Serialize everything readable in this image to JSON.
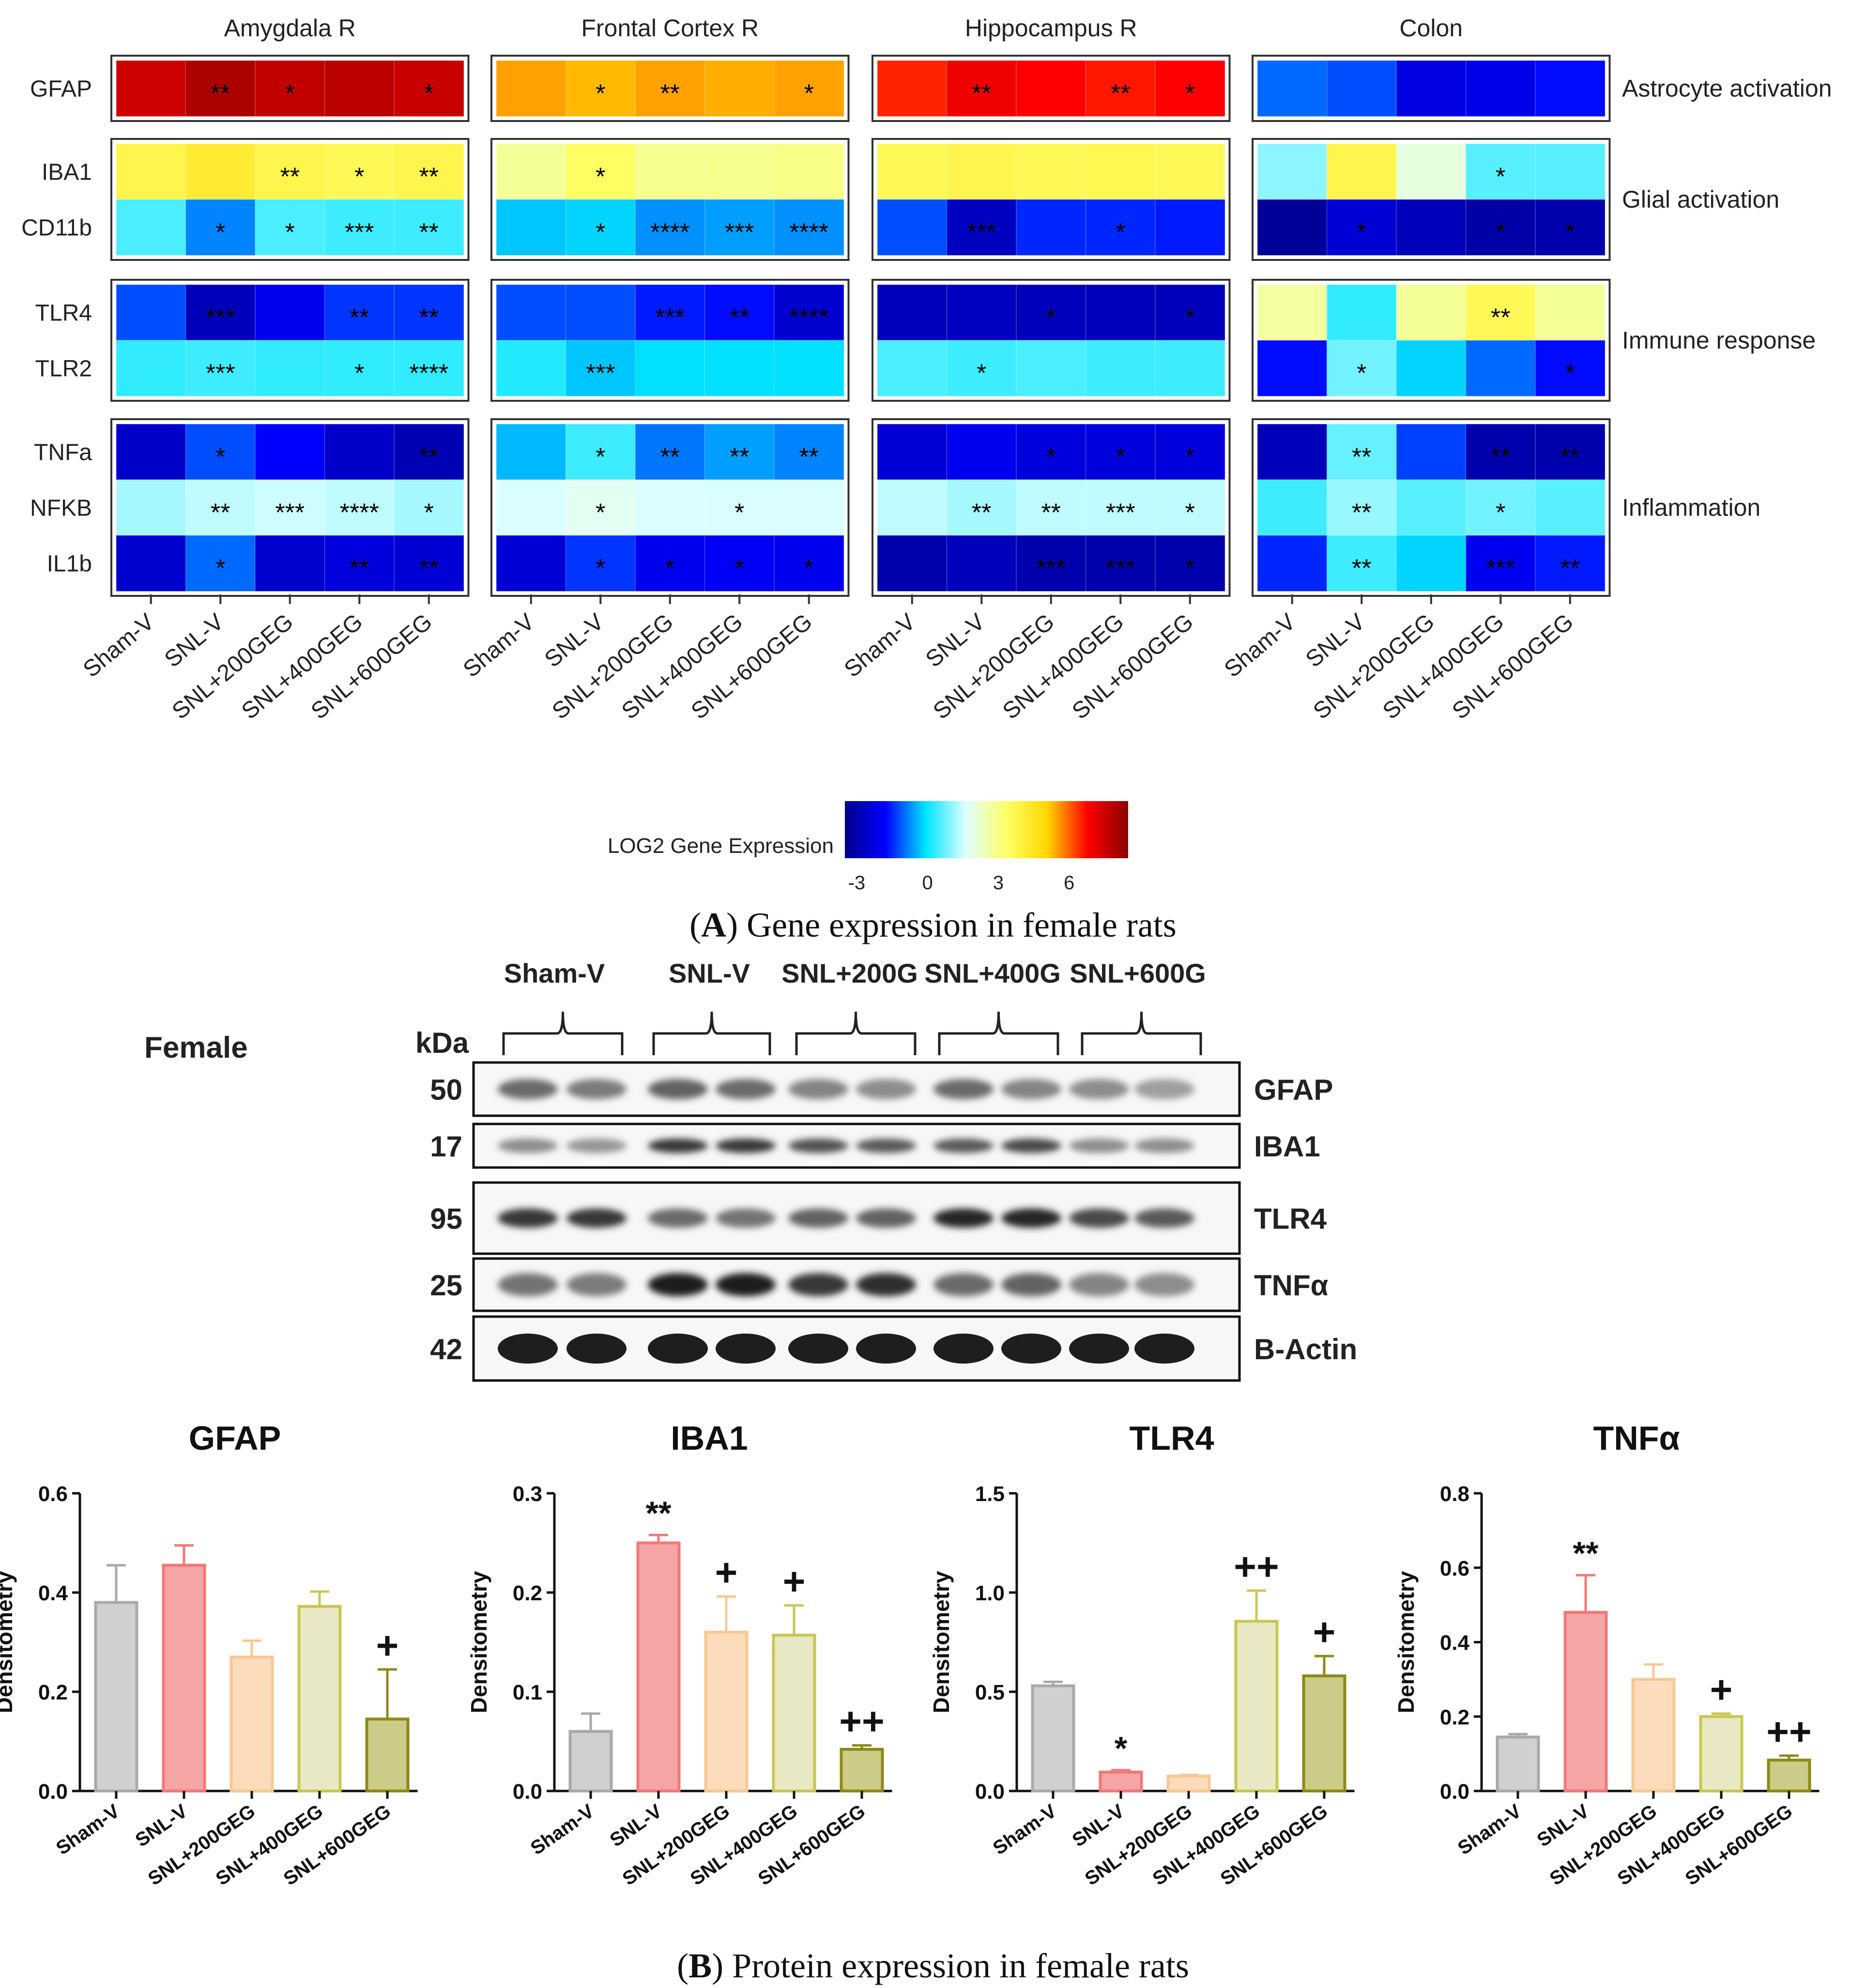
{
  "panel_a": {
    "caption_letter": "A",
    "caption_rest": " Gene expression in female rats",
    "groups": [
      "Sham-V",
      "SNL-V",
      "SNL+200GEG",
      "SNL+400GEG",
      "SNL+600GEG"
    ],
    "regions": [
      "Amygdala R",
      "Frontal Cortex R",
      "Hippocampus R",
      "Colon"
    ],
    "blocks": [
      {
        "category": "Astrocyte activation",
        "genes": [
          "GFAP"
        ]
      },
      {
        "category": "Glial activation",
        "genes": [
          "IBA1",
          "CD11b"
        ]
      },
      {
        "category": "Immune response",
        "genes": [
          "TLR4",
          "TLR2"
        ]
      },
      {
        "category": "Inflammation",
        "genes": [
          "TNFa",
          "NFKB",
          "IL1b"
        ]
      }
    ],
    "colorbar": {
      "label": "LOG2 Gene Expression",
      "ticks": [
        "-3",
        "0",
        "3",
        "6"
      ],
      "min": -3.5,
      "max": 8.5,
      "stops": [
        "#00008b",
        "#0000ff",
        "#00e5ff",
        "#e0ffff",
        "#ffff66",
        "#ffd700",
        "#ff0000",
        "#8b0000"
      ]
    }
  },
  "chart_data": [
    {
      "type": "heatmap",
      "title": "Gene expression in female rats",
      "colorbar_label": "LOG2 Gene Expression",
      "rows": [
        "GFAP",
        "IBA1",
        "CD11b",
        "TLR4",
        "TLR2",
        "TNFa",
        "NFKB",
        "IL1b"
      ],
      "columns": [
        "Sham-V",
        "SNL-V",
        "SNL+200GEG",
        "SNL+400GEG",
        "SNL+600GEG"
      ],
      "panels": [
        {
          "region": "Amygdala R",
          "values": [
            [
              7.5,
              8.0,
              7.7,
              7.8,
              7.6
            ],
            [
              3.8,
              4.2,
              3.8,
              3.6,
              3.8
            ],
            [
              0.5,
              -0.8,
              0.5,
              0.4,
              0.4
            ],
            [
              -1.2,
              -2.8,
              -2.0,
              -1.4,
              -1.4
            ],
            [
              0.3,
              0.4,
              0.3,
              0.3,
              0.3
            ],
            [
              -2.6,
              -1.2,
              -1.8,
              -2.6,
              -2.9
            ],
            [
              1.2,
              1.4,
              1.5,
              1.4,
              1.2
            ],
            [
              -2.5,
              -1.0,
              -2.5,
              -2.3,
              -2.4
            ]
          ],
          "stars": [
            [
              "",
              "**",
              "*",
              "",
              "*"
            ],
            [
              "",
              "",
              "**",
              "*",
              "**"
            ],
            [
              "",
              "*",
              "*",
              "***",
              "**"
            ],
            [
              "",
              "***",
              "",
              "**",
              "**"
            ],
            [
              "",
              "***",
              "",
              "*",
              "****"
            ],
            [
              "",
              "*",
              "",
              "",
              "**"
            ],
            [
              "",
              "**",
              "***",
              "****",
              "*"
            ],
            [
              "",
              "*",
              "",
              "**",
              "**"
            ]
          ]
        },
        {
          "region": "Frontal Cortex R",
          "values": [
            [
              5.5,
              5.3,
              5.5,
              5.4,
              5.5
            ],
            [
              2.8,
              3.4,
              2.9,
              2.9,
              3.0
            ],
            [
              -0.3,
              -0.2,
              -0.7,
              -0.6,
              -0.7
            ],
            [
              -1.2,
              -1.2,
              -1.6,
              -1.7,
              -2.5
            ],
            [
              0.2,
              -0.3,
              -0.1,
              -0.1,
              -0.1
            ],
            [
              -0.4,
              0.4,
              -0.9,
              -0.6,
              -0.8
            ],
            [
              1.6,
              1.8,
              1.6,
              1.6,
              1.6
            ],
            [
              -2.4,
              -1.4,
              -2.0,
              -1.9,
              -2.0
            ]
          ],
          "stars": [
            [
              "",
              "*",
              "**",
              "",
              "*"
            ],
            [
              "",
              "*",
              "",
              "",
              ""
            ],
            [
              "",
              "*",
              "****",
              "***",
              "****"
            ],
            [
              "",
              "",
              "***",
              "**",
              "****"
            ],
            [
              "",
              "***",
              "",
              "",
              ""
            ],
            [
              "",
              "*",
              "**",
              "**",
              "**"
            ],
            [
              "",
              "*",
              "",
              "*",
              ""
            ],
            [
              "",
              "*",
              "*",
              "*",
              "*"
            ]
          ]
        },
        {
          "region": "Hippocampus R",
          "values": [
            [
              6.5,
              7.0,
              6.8,
              6.6,
              6.8
            ],
            [
              3.6,
              3.8,
              3.6,
              3.7,
              3.6
            ],
            [
              -1.2,
              -2.7,
              -1.5,
              -1.5,
              -1.6
            ],
            [
              -2.8,
              -2.7,
              -2.8,
              -2.8,
              -2.8
            ],
            [
              0.5,
              0.4,
              0.5,
              0.4,
              0.4
            ],
            [
              -2.4,
              -2.0,
              -2.3,
              -2.3,
              -2.3
            ],
            [
              1.4,
              1.2,
              1.4,
              1.4,
              1.4
            ],
            [
              -3.0,
              -2.8,
              -3.0,
              -3.0,
              -3.0
            ]
          ],
          "stars": [
            [
              "",
              "**",
              "",
              "**",
              "*"
            ],
            [
              "",
              "",
              "",
              "",
              ""
            ],
            [
              "",
              "***",
              "",
              "*",
              ""
            ],
            [
              "",
              "",
              "*",
              "",
              "*"
            ],
            [
              "",
              "*",
              "",
              "",
              ""
            ],
            [
              "",
              "",
              "*",
              "*",
              "*"
            ],
            [
              "",
              "**",
              "**",
              "***",
              "*"
            ],
            [
              "",
              "",
              "***",
              "***",
              "*"
            ]
          ]
        },
        {
          "region": "Colon",
          "values": [
            [
              -1.0,
              -1.2,
              -2.2,
              -2.1,
              -1.7
            ],
            [
              1.0,
              3.8,
              2.0,
              0.6,
              0.6
            ],
            [
              -3.3,
              -2.4,
              -2.8,
              -3.1,
              -3.0
            ],
            [
              2.7,
              0.3,
              2.8,
              3.6,
              2.8
            ],
            [
              -1.7,
              0.8,
              -0.2,
              -1.0,
              -1.7
            ],
            [
              -2.8,
              0.7,
              -1.3,
              -3.0,
              -3.0
            ],
            [
              0.4,
              1.1,
              0.6,
              0.8,
              0.6
            ],
            [
              -1.5,
              0.4,
              -0.2,
              -2.0,
              -1.6
            ]
          ],
          "stars": [
            [
              "",
              "",
              "",
              "",
              ""
            ],
            [
              "",
              "",
              "",
              "*",
              ""
            ],
            [
              "",
              "*",
              "",
              "*",
              "*"
            ],
            [
              "",
              "",
              "",
              "**",
              ""
            ],
            [
              "",
              "*",
              "",
              "",
              "*"
            ],
            [
              "",
              "**",
              "",
              "**",
              "**"
            ],
            [
              "",
              "**",
              "",
              "*",
              ""
            ],
            [
              "",
              "**",
              "",
              "***",
              "**"
            ]
          ]
        }
      ]
    },
    {
      "type": "bar",
      "title": "GFAP",
      "ylabel": "Densitometry",
      "ylim": [
        0,
        0.6
      ],
      "yticks": [
        "0.0",
        "0.2",
        "0.4",
        "0.6"
      ],
      "categories": [
        "Sham-V",
        "SNL-V",
        "SNL+200GEG",
        "SNL+400GEG",
        "SNL+600GEG"
      ],
      "values": [
        0.38,
        0.455,
        0.27,
        0.372,
        0.145
      ],
      "errors": [
        0.075,
        0.04,
        0.033,
        0.03,
        0.1
      ],
      "annotations": [
        "",
        "",
        "",
        "",
        "+"
      ]
    },
    {
      "type": "bar",
      "title": "IBA1",
      "ylabel": "Densitometry",
      "ylim": [
        0,
        0.3
      ],
      "yticks": [
        "0.0",
        "0.1",
        "0.2",
        "0.3"
      ],
      "categories": [
        "Sham-V",
        "SNL-V",
        "SNL+200GEG",
        "SNL+400GEG",
        "SNL+600GEG"
      ],
      "values": [
        0.06,
        0.25,
        0.16,
        0.157,
        0.042
      ],
      "errors": [
        0.018,
        0.008,
        0.036,
        0.03,
        0.004
      ],
      "annotations": [
        "",
        "**",
        "+",
        "+",
        "++"
      ]
    },
    {
      "type": "bar",
      "title": "TLR4",
      "ylabel": "Densitometry",
      "ylim": [
        0,
        1.5
      ],
      "yticks": [
        "0.0",
        "0.5",
        "1.0",
        "1.5"
      ],
      "categories": [
        "Sham-V",
        "SNL-V",
        "SNL+200GEG",
        "SNL+400GEG",
        "SNL+600GEG"
      ],
      "values": [
        0.53,
        0.095,
        0.075,
        0.855,
        0.58
      ],
      "errors": [
        0.02,
        0.01,
        0.006,
        0.155,
        0.1
      ],
      "annotations": [
        "",
        "*",
        "",
        "++",
        "+"
      ]
    },
    {
      "type": "bar",
      "title": "TNFα",
      "ylabel": "Densitometry",
      "ylim": [
        0,
        0.8
      ],
      "yticks": [
        "0.0",
        "0.2",
        "0.4",
        "0.6",
        "0.8"
      ],
      "categories": [
        "Sham-V",
        "SNL-V",
        "SNL+200GEG",
        "SNL+400GEG",
        "SNL+600GEG"
      ],
      "values": [
        0.145,
        0.48,
        0.3,
        0.2,
        0.083
      ],
      "errors": [
        0.008,
        0.1,
        0.04,
        0.008,
        0.012
      ],
      "annotations": [
        "",
        "**",
        "",
        "+",
        "++"
      ]
    }
  ],
  "panel_b": {
    "caption_letter": "B",
    "caption_rest": " Protein expression in female rats",
    "sex_label": "Female",
    "kda_label": "kDa",
    "blot_groups": [
      "Sham-V",
      "SNL-V",
      "SNL+200G",
      "SNL+400G",
      "SNL+600G"
    ],
    "blot_rows": [
      {
        "kda": "50",
        "protein": "GFAP"
      },
      {
        "kda": "17",
        "protein": "IBA1"
      },
      {
        "kda": "95",
        "protein": "TLR4"
      },
      {
        "kda": "25",
        "protein": "TNFα"
      },
      {
        "kda": "42",
        "protein": "B-Actin"
      }
    ],
    "bar_colors": {
      "fill": [
        "#d0d0d0",
        "#f5a5a5",
        "#fcdcba",
        "#e9e8c4",
        "#cccb88"
      ],
      "stroke": [
        "#a9a9a9",
        "#f27878",
        "#f7c894",
        "#c9c750",
        "#8c8a16"
      ]
    }
  }
}
